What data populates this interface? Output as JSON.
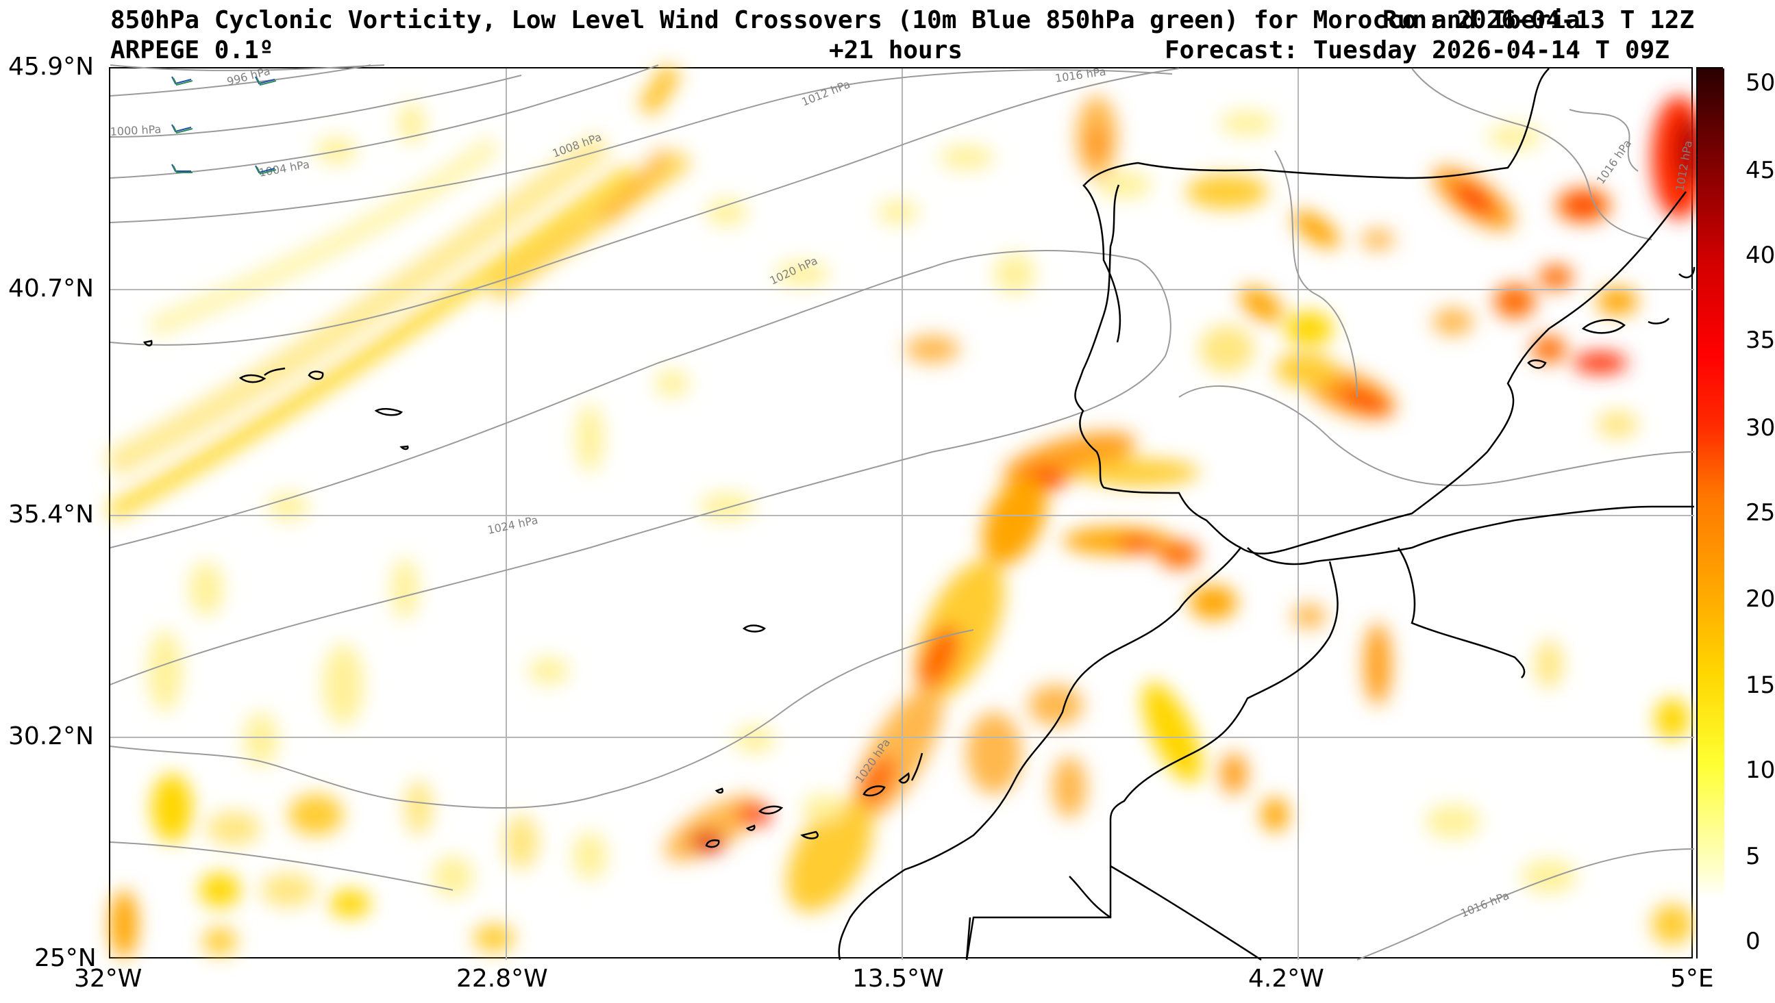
{
  "header": {
    "title_line1": "850hPa Cyclonic Vorticity, Low Level Wind Crossovers (10m Blue 850hPa green) for Morocco and Iberia",
    "run_overlay": "Run: 2026-04-13 T 12Z",
    "model": "ARPEGE 0.1º",
    "lead_time": "+21 hours",
    "forecast": "Forecast: Tuesday 2026-04-14 T 09Z"
  },
  "map": {
    "lat_labels": [
      "45.9°N",
      "40.7°N",
      "35.4°N",
      "30.2°N",
      "25°N"
    ],
    "lon_labels": [
      "32°W",
      "22.8°W",
      "13.5°W",
      "4.2°W",
      "5°E"
    ],
    "isobar_labels": [
      "996 hPa",
      "1000 hPa",
      "1004 hPa",
      "1008 hPa",
      "1012 hPa",
      "1016 hPa",
      "1020 hPa",
      "1024 hPa",
      "1020 hPa",
      "1016 hPa",
      "1016 hPa",
      "1012 hPa"
    ],
    "colors": {
      "vort_low": "#ffff80",
      "vort_mid": "#ffd700",
      "vort_high": "#ff8c00",
      "vort_peak": "#ff0000",
      "isobar": "#999999",
      "coast": "#000000"
    }
  },
  "colorbar": {
    "ticks": [
      "50",
      "45",
      "40",
      "35",
      "30",
      "25",
      "20",
      "15",
      "10",
      "5",
      "0"
    ],
    "min": 0,
    "max": 50
  }
}
